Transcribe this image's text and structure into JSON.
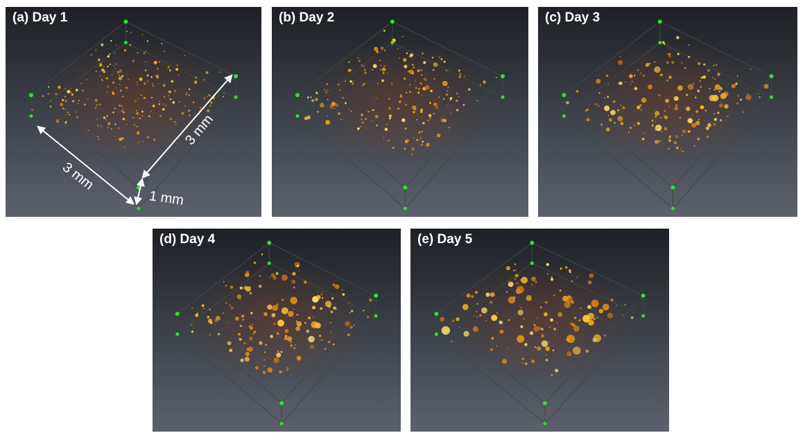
{
  "panels": [
    {
      "label": "(a) Day 1"
    },
    {
      "label": "(b) Day 2"
    },
    {
      "label": "(c) Day 3"
    },
    {
      "label": "(d) Day 4"
    },
    {
      "label": "(e) Day 5"
    }
  ],
  "annotations": {
    "width": "3 mm",
    "depth": "3 mm",
    "height": "1 mm"
  }
}
